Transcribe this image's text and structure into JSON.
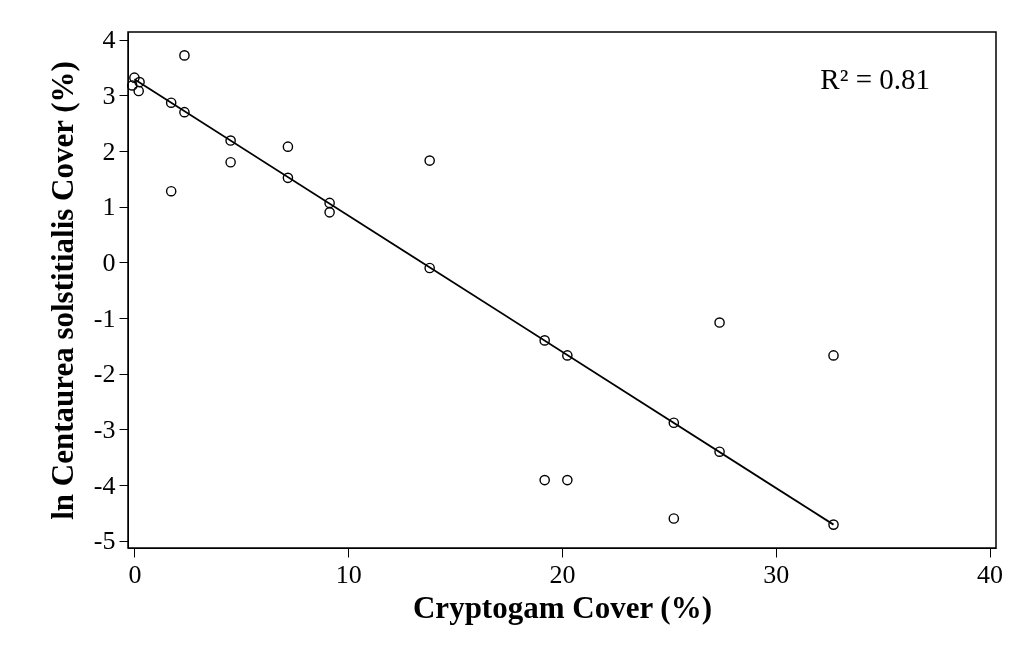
{
  "chart_data": {
    "type": "scatter",
    "xlabel": "Cryptogam Cover (%)",
    "ylabel": "ln Centaurea solstitialis Cover (%)",
    "xlim": [
      -0.3,
      40.3
    ],
    "ylim": [
      -5.13,
      4.14
    ],
    "xticks": [
      0,
      10,
      20,
      30,
      40
    ],
    "yticks": [
      -5,
      -4,
      -3,
      -2,
      -1,
      0,
      1,
      2,
      3,
      4
    ],
    "grid": false,
    "annotations": [
      "R² = 0.81"
    ],
    "series": [
      {
        "color": "#000000",
        "marker": "circle",
        "x": [
          0,
          -0.1,
          0.24,
          0.2,
          2.34,
          1.72,
          2.34,
          1.72,
          4.5,
          4.5,
          7.18,
          7.18,
          9.13,
          9.13,
          13.81,
          13.81,
          19.19,
          20.25,
          19.19,
          20.25,
          25.23,
          25.23,
          27.37,
          27.37,
          32.7,
          32.7
        ],
        "values": [
          3.32,
          3.18,
          3.24,
          3.08,
          3.72,
          2.87,
          2.7,
          1.28,
          2.19,
          1.8,
          2.08,
          1.52,
          1.07,
          0.9,
          1.83,
          -0.1,
          -1.4,
          -1.67,
          -3.91,
          -3.91,
          -2.88,
          -4.6,
          -1.08,
          -3.4,
          -1.67,
          -4.71
        ]
      },
      {
        "type": "line",
        "color": "#000000",
        "line_style": "solid",
        "x": [
          0,
          32.7
        ],
        "values": [
          3.29,
          -4.71
        ]
      }
    ]
  }
}
